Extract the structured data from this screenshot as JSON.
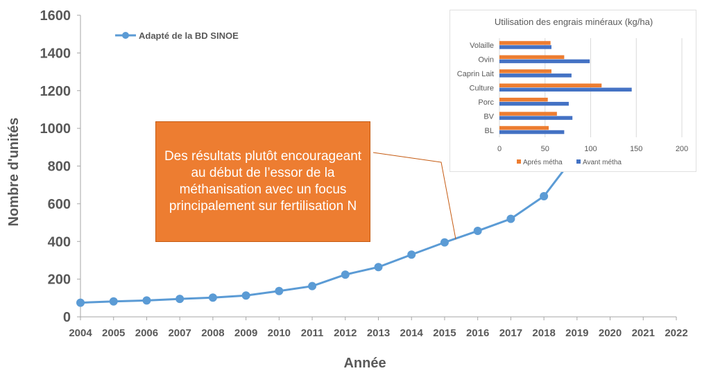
{
  "chart_data": [
    {
      "type": "line",
      "title": "",
      "xlabel": "Année",
      "ylabel": "Nombre d'unités",
      "x": [
        2004,
        2005,
        2006,
        2007,
        2008,
        2009,
        2010,
        2011,
        2012,
        2013,
        2014,
        2015,
        2016,
        2017,
        2018,
        2019,
        2020,
        2021,
        2022
      ],
      "xticks": [
        "2004",
        "2005",
        "2006",
        "2007",
        "2008",
        "2009",
        "2010",
        "2011",
        "2012",
        "2013",
        "2014",
        "2015",
        "2016",
        "2017",
        "2018",
        "2019",
        "2020",
        "2021",
        "2022"
      ],
      "yticks": [
        "0",
        "200",
        "400",
        "600",
        "800",
        "1000",
        "1200",
        "1400",
        "1600"
      ],
      "ylim": [
        0,
        1600
      ],
      "series": [
        {
          "name": "Adapté de la BD SINOE",
          "x": [
            2004,
            2005,
            2006,
            2007,
            2008,
            2009,
            2010,
            2011,
            2012,
            2013,
            2014,
            2015,
            2016,
            2017,
            2018,
            2019
          ],
          "values": [
            75,
            82,
            87,
            95,
            102,
            113,
            137,
            163,
            224,
            264,
            330,
            395,
            456,
            520,
            640,
            870
          ]
        }
      ],
      "legend": "top-left",
      "grid": false,
      "color": "#5b9bd5"
    },
    {
      "type": "bar",
      "orientation": "horizontal",
      "title": "Utilisation des engrais minéraux (kg/ha)",
      "categories": [
        "Volaille",
        "Ovin",
        "Caprin Lait",
        "Culture",
        "Porc",
        "BV",
        "BL"
      ],
      "xticks": [
        "0",
        "50",
        "100",
        "150",
        "200"
      ],
      "xlim": [
        0,
        200
      ],
      "series": [
        {
          "name": "Aprés métha",
          "color": "#ed7d31",
          "values": [
            56,
            71,
            57,
            112,
            53,
            63,
            54
          ]
        },
        {
          "name": "Avant métha",
          "color": "#4472c4",
          "values": [
            57,
            99,
            79,
            145,
            76,
            80,
            71
          ]
        }
      ],
      "legend": "bottom",
      "grid": true
    }
  ],
  "annotation": {
    "text": "Des résultats plutôt encourageant au début de l’essor de la méthanisation avec un focus principalement sur fertilisation N",
    "color": "#ed7d31"
  }
}
